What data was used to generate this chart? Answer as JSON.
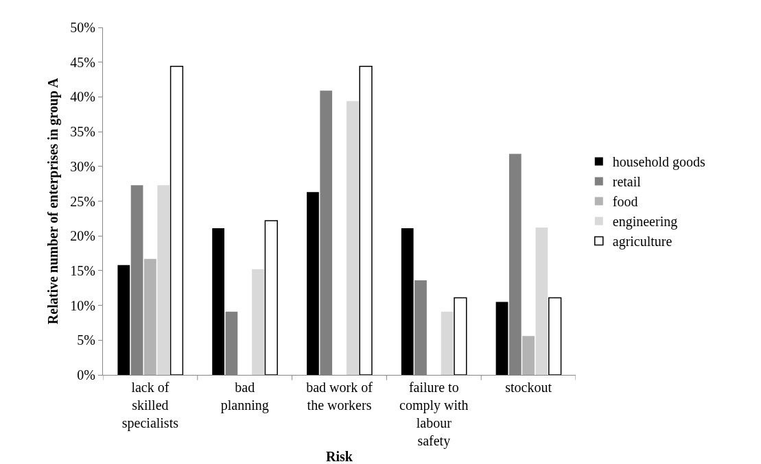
{
  "chart_data": {
    "type": "bar",
    "xlabel": "Risk",
    "ylabel": "Relative number of enterprises in group A",
    "categories": [
      "lack of skilled specialists",
      "bad planning",
      "bad work of the workers",
      "failure to comply with labour safety",
      "stockout"
    ],
    "series": [
      {
        "name": "household goods",
        "color": "#000000",
        "values": [
          15.8,
          21.1,
          26.3,
          21.1,
          10.5
        ]
      },
      {
        "name": "retail",
        "color": "#808080",
        "values": [
          27.3,
          9.1,
          40.9,
          13.6,
          31.8
        ]
      },
      {
        "name": "food",
        "color": "#b3b3b3",
        "values": [
          16.7,
          0,
          0,
          0,
          5.6
        ]
      },
      {
        "name": "engineering",
        "color": "#d9d9d9",
        "values": [
          27.3,
          15.2,
          39.4,
          9.1,
          21.2
        ]
      },
      {
        "name": "agriculture",
        "color": "#ffffff",
        "values": [
          44.4,
          22.2,
          44.4,
          11.1,
          11.1
        ]
      }
    ],
    "ylim": [
      0,
      50
    ],
    "yticks": [
      {
        "value": 0,
        "label": "0%"
      },
      {
        "value": 5,
        "label": "5%"
      },
      {
        "value": 10,
        "label": "10%"
      },
      {
        "value": 15,
        "label": "15%"
      },
      {
        "value": 20,
        "label": "20%"
      },
      {
        "value": 25,
        "label": "25%"
      },
      {
        "value": 30,
        "label": "30%"
      },
      {
        "value": 35,
        "label": "35%"
      },
      {
        "value": 40,
        "label": "40%"
      },
      {
        "value": 45,
        "label": "45%"
      },
      {
        "value": 50,
        "label": "50%"
      }
    ],
    "grid": false,
    "legend": "right"
  }
}
